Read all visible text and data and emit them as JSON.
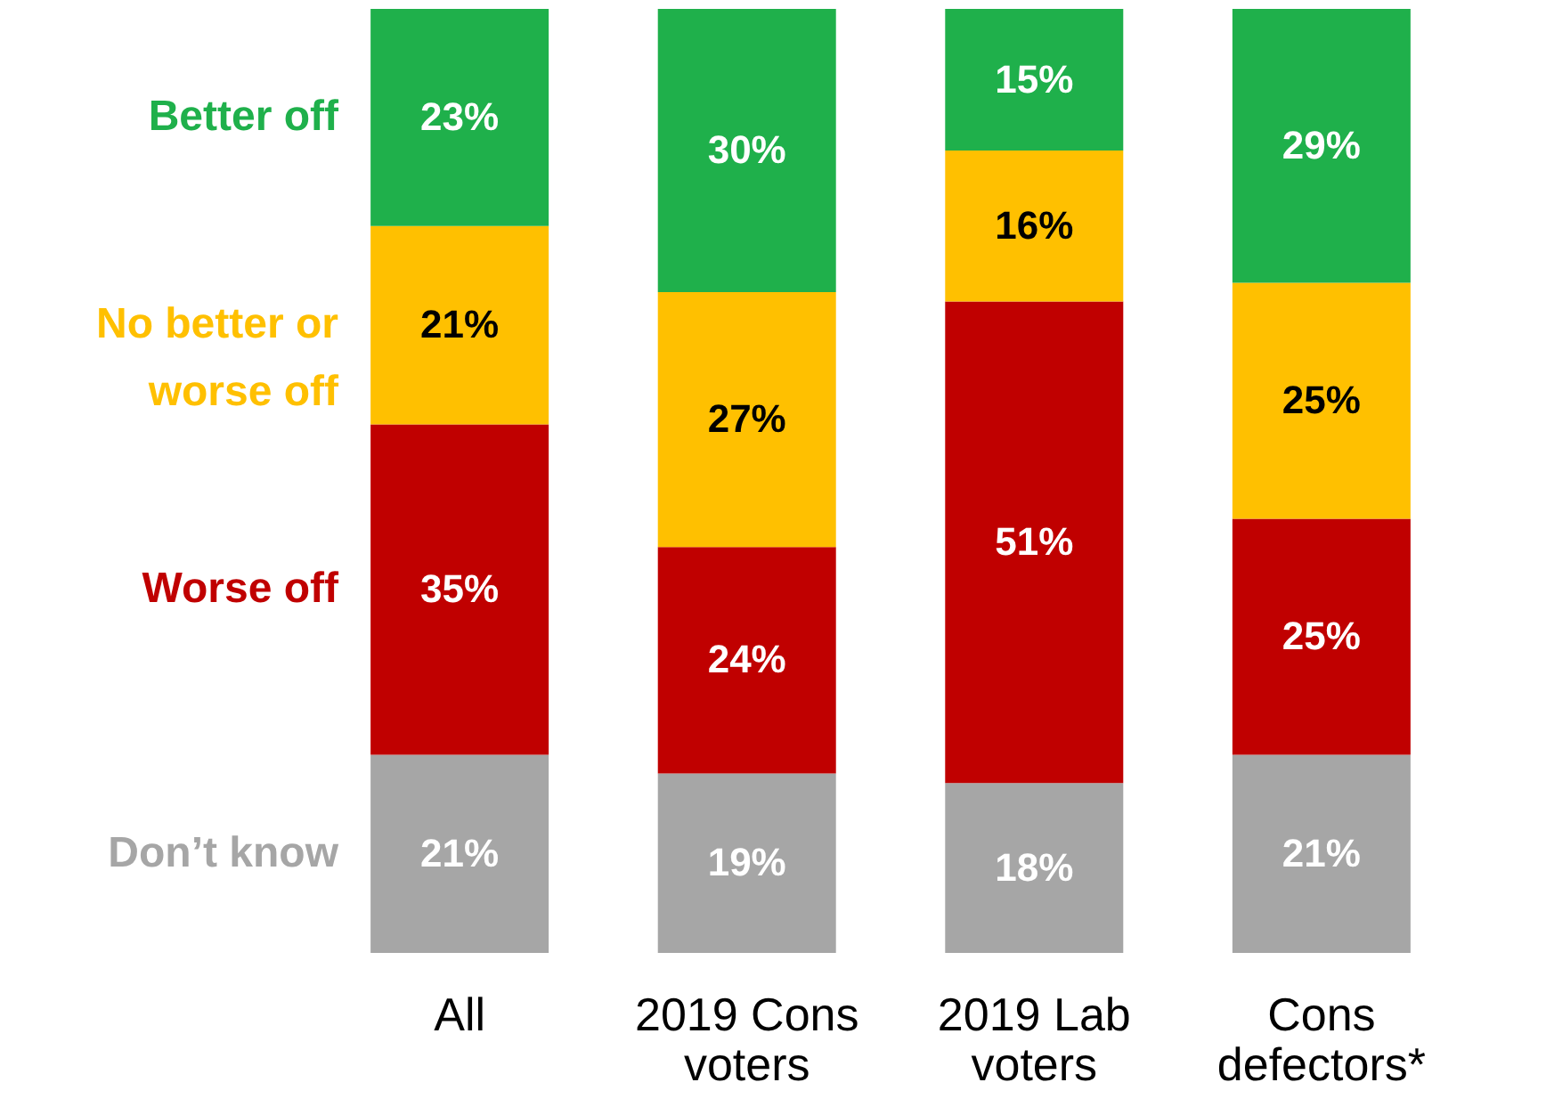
{
  "chart_data": {
    "type": "bar",
    "stacked": true,
    "legend": "left",
    "categories": [
      "All",
      "2019 Cons voters",
      "2019 Lab voters",
      "Cons defectors*"
    ],
    "series": [
      {
        "name": "Don’t know",
        "color": "#a6a6a6",
        "values": [
          21,
          19,
          18,
          21
        ],
        "value_labels": [
          "21%",
          "19%",
          "18%",
          "21%"
        ]
      },
      {
        "name": "Worse off",
        "color": "#c00000",
        "values": [
          35,
          24,
          51,
          25
        ],
        "value_labels": [
          "35%",
          "24%",
          "51%",
          "25%"
        ]
      },
      {
        "name": "No better or worse off",
        "color": "#ffc000",
        "values": [
          21,
          27,
          16,
          25
        ],
        "value_labels": [
          "21%",
          "27%",
          "16%",
          "25%"
        ]
      },
      {
        "name": "Better off",
        "color": "#1fb04b",
        "values": [
          23,
          30,
          15,
          29
        ],
        "value_labels": [
          "23%",
          "30%",
          "15%",
          "29%"
        ]
      }
    ]
  }
}
